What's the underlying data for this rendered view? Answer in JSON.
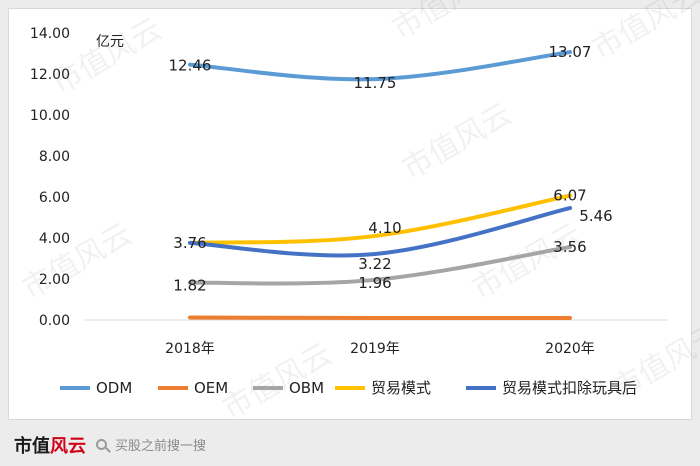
{
  "chart_data": {
    "type": "line",
    "ylabel": "亿元",
    "categories": [
      "2018年",
      "2019年",
      "2020年"
    ],
    "ylim": [
      0,
      14
    ],
    "yticks": [
      "0.00",
      "2.00",
      "4.00",
      "6.00",
      "8.00",
      "10.00",
      "12.00",
      "14.00"
    ],
    "grid": false,
    "legend_position": "bottom",
    "series": [
      {
        "name": "ODM",
        "values": [
          12.46,
          11.75,
          13.07
        ],
        "labels": [
          "12.46",
          "11.75",
          "13.07"
        ],
        "color": "#5b9bd5"
      },
      {
        "name": "OEM",
        "values": [
          0.12,
          0.1,
          0.1
        ],
        "labels": [
          "",
          "",
          ""
        ],
        "color": "#ed7d31"
      },
      {
        "name": "OBM",
        "values": [
          1.82,
          1.96,
          3.56
        ],
        "labels": [
          "1.82",
          "1.96",
          "3.56"
        ],
        "color": "#a5a5a5"
      },
      {
        "name": "贸易模式",
        "values": [
          3.76,
          4.1,
          6.07
        ],
        "labels": [
          "",
          "4.10",
          "6.07"
        ],
        "color": "#ffc000"
      },
      {
        "name": "贸易模式扣除玩具后",
        "values": [
          3.76,
          3.22,
          5.46
        ],
        "labels": [
          "3.76",
          "3.22",
          "5.46"
        ],
        "color": "#4472c4"
      }
    ]
  },
  "footer": {
    "logo_text": "市值",
    "logo_mark": "风云",
    "search_text": "买股之前搜一搜"
  },
  "watermark": "市值风云"
}
